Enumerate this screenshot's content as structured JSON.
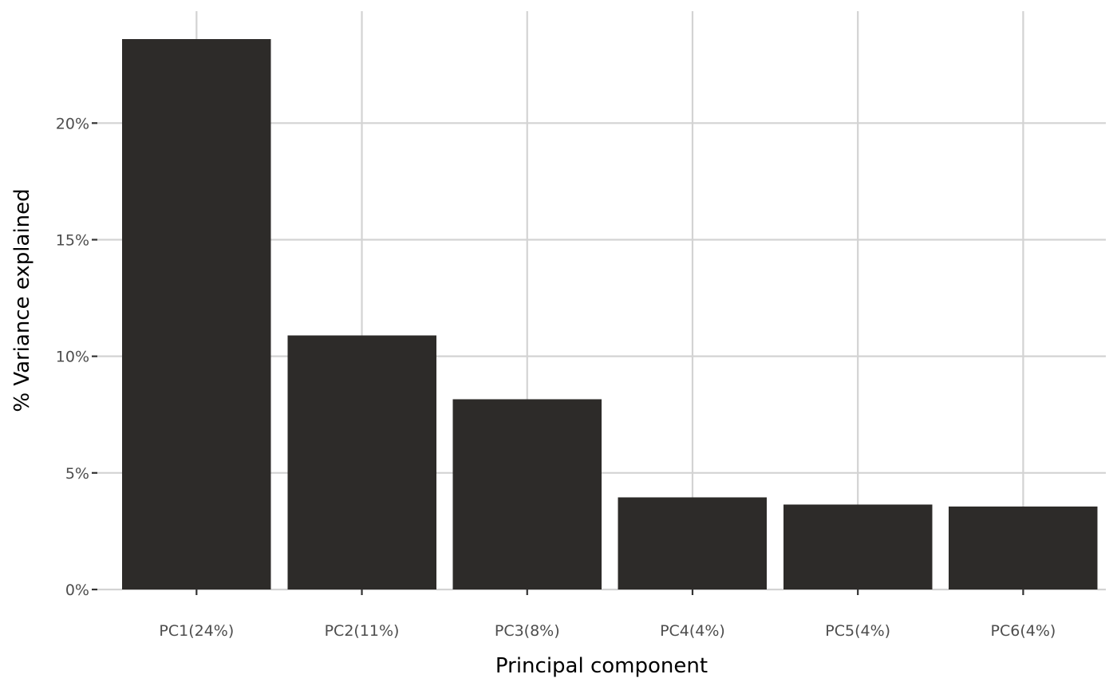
{
  "chart_data": {
    "type": "bar",
    "title": "",
    "xlabel": "Principal component",
    "ylabel": "% Variance explained",
    "categories": [
      "PC1(24%)",
      "PC2(11%)",
      "PC3(8%)",
      "PC4(4%)",
      "PC5(4%)",
      "PC6(4%)"
    ],
    "values": [
      23.6,
      10.9,
      8.15,
      3.95,
      3.65,
      3.55
    ],
    "ylim": [
      0,
      24.8
    ],
    "yticks": [
      0,
      5,
      10,
      15,
      20
    ],
    "ytick_labels": [
      "0%",
      "5%",
      "10%",
      "15%",
      "20%"
    ],
    "grid": true,
    "bar_color": "#2d2b29",
    "grid_color": "#d3d3d3"
  }
}
